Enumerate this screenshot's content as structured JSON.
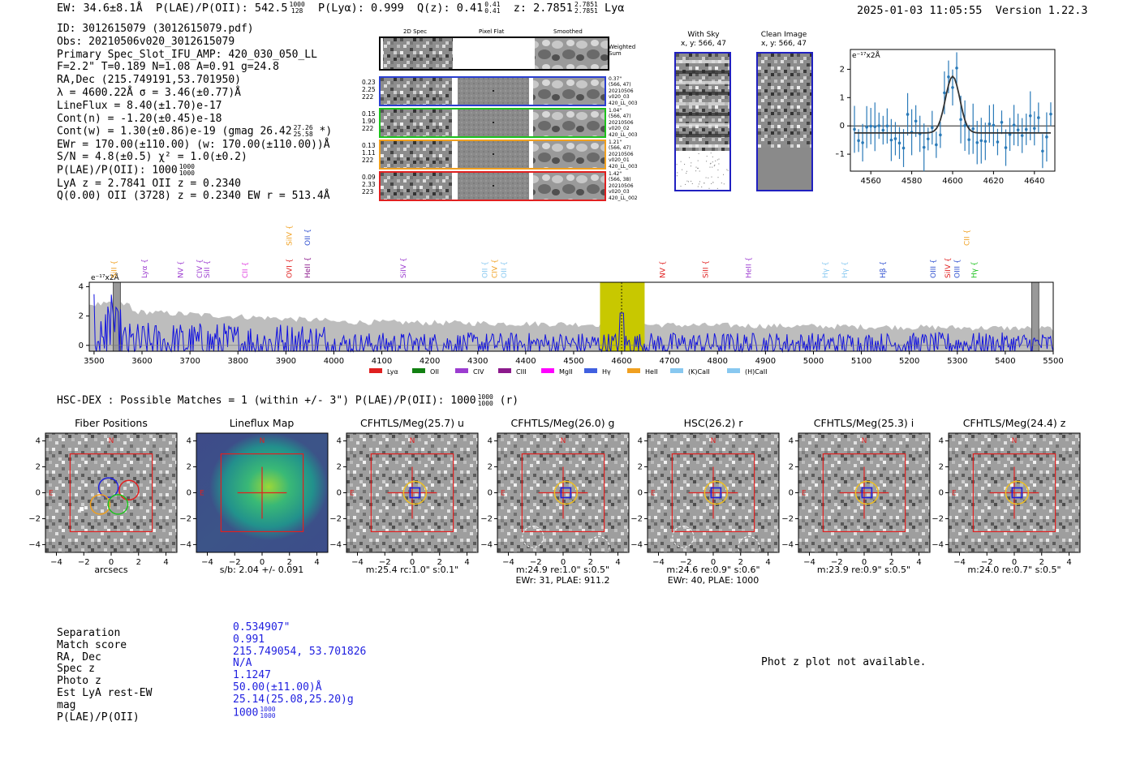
{
  "header": {
    "ew_text": "EW: 34.6±8.1Å",
    "plae_label": "P(LAE)/P(OII): 542.5",
    "plae_hi": "1000",
    "plae_lo": "128",
    "plya_text": "P(Lyα): 0.999",
    "qz_label": "Q(z): 0.41",
    "qz_hi": "0.41",
    "qz_lo": "0.41",
    "z_label": "z: 2.7851",
    "z_hi": "2.7851",
    "z_lo": "2.7851",
    "z_line": "Lyα",
    "datetime": "2025-01-03 11:05:55",
    "version": "Version 1.22.3"
  },
  "info": {
    "id": "ID: 3012615079 (3012615079.pdf)",
    "obs": "Obs: 20210506v020_3012615079",
    "primary": "Primary Spec_Slot_IFU_AMP: 420_030_050_LL",
    "fiber_params": "F=2.2\"  T=0.189  N=1.08  A=0.91  g=24.8",
    "radec": "RA,Dec (215.749191,53.701950)",
    "lambda": "λ = 4600.22Å   σ = 3.46(±0.77)Å",
    "lineflux": "LineFlux = 8.40(±1.70)e-17",
    "contn": "Cont(n) = -1.20(±0.45)e-18",
    "contw_main": "Cont(w) = 1.30(±0.86)e-19 (gmag 26.42",
    "contw_hi": "27.26",
    "contw_lo": "25.58",
    "contw_end": "*)",
    "ewr": "EWr = 170.00(±110.00) (w: 170.00(±110.00))Å",
    "sn": "S/N = 4.8(±0.5)  χ² = 1.0(±0.2)",
    "plae_main": "P(LAE)/P(OII): 1000",
    "plae_hi": "1000",
    "plae_lo": "1000",
    "lya_z": "LyA z = 2.7841  OII z = 0.2340",
    "q_line": "Q(0.00) OII (3728) z = 0.2340  EW r = 513.4Å"
  },
  "cutouts": {
    "col_titles": [
      "2D Spec",
      "Pixel Flat",
      "Smoothed"
    ],
    "weighted_sum": [
      "Weighted",
      "Sum"
    ],
    "rows": [
      {
        "left": [
          "0.23",
          "2.25",
          "222"
        ],
        "right": [
          "0.37\"",
          "(566, 47)",
          "20210506",
          "v020_03",
          "420_LL_003"
        ],
        "color": "#2a3fd1"
      },
      {
        "left": [
          "0.15",
          "1.90",
          "222"
        ],
        "right": [
          "1.04\"",
          "(566, 47)",
          "20210506",
          "v020_02",
          "420_LL_003"
        ],
        "color": "#1cc11c"
      },
      {
        "left": [
          "0.13",
          "1.11",
          "222"
        ],
        "right": [
          "1.21\"",
          "(566, 47)",
          "20210506",
          "v020_01",
          "420_LL_003"
        ],
        "color": "#f0a020"
      },
      {
        "left": [
          "0.09",
          "2.33",
          "223"
        ],
        "right": [
          "1.42\"",
          "(566, 38)",
          "20210506",
          "v020_03",
          "420_LL_002"
        ],
        "color": "#e02020"
      }
    ],
    "with_sky_title": "With Sky",
    "with_sky_coords": "x, y: 566, 47",
    "clean_title": "Clean Image",
    "clean_coords": "x, y: 566, 47"
  },
  "zoom_plot": {
    "unit_label": "e⁻¹⁷x2Å",
    "x_ticks": [
      "4560",
      "4580",
      "4600",
      "4620",
      "4640"
    ],
    "y_ticks": [
      "2",
      "1",
      "0",
      "−1"
    ]
  },
  "spectrum": {
    "unit_label": "e⁻¹⁷x2Å",
    "x_ticks": [
      "3500",
      "3600",
      "3700",
      "3800",
      "3900",
      "4000",
      "4100",
      "4200",
      "4300",
      "4400",
      "4500",
      "4600",
      "4700",
      "4800",
      "4900",
      "5000",
      "5100",
      "5200",
      "5300",
      "5400",
      "5500"
    ],
    "y_ticks": [
      "4",
      "2",
      "0"
    ],
    "lines": [
      {
        "name": "SiII",
        "color": "#f0a020",
        "wave": 3547,
        "row": "low"
      },
      {
        "name": "Lyα",
        "color": "#9c3cd0",
        "wave": 3610,
        "row": "low"
      },
      {
        "name": "NV",
        "color": "#9c3cd0",
        "wave": 3685,
        "row": "low"
      },
      {
        "name": "SiII",
        "color": "#9c3cd0",
        "wave": 3740,
        "row": "low"
      },
      {
        "name": "CIV",
        "color": "#9c3cd0",
        "wave": 3725,
        "row": "low"
      },
      {
        "name": "CII",
        "color": "#e040e0",
        "wave": 3820,
        "row": "low"
      },
      {
        "name": "OVI",
        "color": "#e02020",
        "wave": 3912,
        "row": "low"
      },
      {
        "name": "SiIV",
        "color": "#f0a020",
        "wave": 3912,
        "row": "high"
      },
      {
        "name": "HeII",
        "color": "#8c1a8c",
        "wave": 3950,
        "row": "low"
      },
      {
        "name": "OII",
        "color": "#3050d0",
        "wave": 3950,
        "row": "high"
      },
      {
        "name": "SiIV",
        "color": "#9c3cd0",
        "wave": 4150,
        "row": "low"
      },
      {
        "name": "OII",
        "color": "#88c8f0",
        "wave": 4320,
        "row": "low"
      },
      {
        "name": "CIV",
        "color": "#f0a020",
        "wave": 4340,
        "row": "low"
      },
      {
        "name": "OII",
        "color": "#88c8f0",
        "wave": 4360,
        "row": "low"
      },
      {
        "name": "NV",
        "color": "#e02020",
        "wave": 4690,
        "row": "low"
      },
      {
        "name": "SiII",
        "color": "#e02020",
        "wave": 4780,
        "row": "low"
      },
      {
        "name": "HeII",
        "color": "#9c3cd0",
        "wave": 4870,
        "row": "low"
      },
      {
        "name": "Hγ",
        "color": "#88c8f0",
        "wave": 5030,
        "row": "low"
      },
      {
        "name": "Hγ",
        "color": "#88c8f0",
        "wave": 5070,
        "row": "low"
      },
      {
        "name": "Hβ",
        "color": "#3050d0",
        "wave": 5150,
        "row": "low"
      },
      {
        "name": "OIII",
        "color": "#3050d0",
        "wave": 5255,
        "row": "low"
      },
      {
        "name": "SiIV",
        "color": "#e02020",
        "wave": 5285,
        "row": "low"
      },
      {
        "name": "OIII",
        "color": "#3050d0",
        "wave": 5305,
        "row": "low"
      },
      {
        "name": "Hγ",
        "color": "#1cc11c",
        "wave": 5340,
        "row": "low"
      },
      {
        "name": "CII",
        "color": "#f0a020",
        "wave": 5325,
        "row": "high"
      }
    ],
    "legend": [
      {
        "label": "Lyα",
        "color": "#e02020"
      },
      {
        "label": "OII",
        "color": "#128012"
      },
      {
        "label": "CIV",
        "color": "#9c3cd0"
      },
      {
        "label": "CIII",
        "color": "#8c1a8c"
      },
      {
        "label": "MgII",
        "color": "#ff00ff"
      },
      {
        "label": "Hγ",
        "color": "#4060e0"
      },
      {
        "label": "HeII",
        "color": "#f0a020"
      },
      {
        "label": "(K)CaII",
        "color": "#88c8f0"
      },
      {
        "label": "(H)CaII",
        "color": "#88c8f0"
      }
    ]
  },
  "hsc": {
    "matches_text": "HSC-DEX : Possible Matches = 1 (within +/- 3\")  P(LAE)/P(OII): 1000",
    "matches_hi": "1000",
    "matches_lo": "1000",
    "matches_band": "(r)",
    "axis_ticks": [
      "−4",
      "−2",
      "0",
      "2",
      "4"
    ],
    "y_ticks": [
      "4",
      "2",
      "0",
      "−2",
      "−4"
    ],
    "panels": [
      {
        "title": "Fiber Positions",
        "cap1": "arcsecs",
        "cap2": "",
        "kind": "fiber",
        "n": "N",
        "e": "E"
      },
      {
        "title": "Lineflux Map",
        "cap1": "s/b: 2.04 +/- 0.091",
        "cap2": "",
        "kind": "flux",
        "n": "N",
        "e": "E"
      },
      {
        "title": "CFHTLS/Meg(25.7) u",
        "cap1": "m:25.4 rc:1.0\"  s:0.1\"",
        "cap2": "",
        "kind": "img",
        "n": "N",
        "e": "E"
      },
      {
        "title": "CFHTLS/Meg(26.0) g",
        "cap1": "m:24.9  re:1.0\"  s:0.5\"",
        "cap2": "EWr: 31, PLAE: 911.2",
        "kind": "img",
        "n": "N",
        "e": "E"
      },
      {
        "title": "HSC(26.2) r",
        "cap1": "m:24.6  re:0.9\"  s:0.6\"",
        "cap2": "EWr: 40, PLAE: 1000",
        "kind": "img",
        "n": "N",
        "e": "E"
      },
      {
        "title": "CFHTLS/Meg(25.3) i",
        "cap1": "m:23.9  re:0.9\"  s:0.5\"",
        "cap2": "",
        "kind": "img",
        "n": "N",
        "e": "E"
      },
      {
        "title": "CFHTLS/Meg(24.4) z",
        "cap1": "m:24.0  re:0.7\"  s:0.5\"",
        "cap2": "",
        "kind": "img",
        "n": "N",
        "e": "E"
      }
    ]
  },
  "match_table": {
    "labels": [
      "Separation",
      "Match score",
      "RA, Dec",
      "Spec z",
      "Photo z",
      "Est LyA rest-EW",
      "mag",
      "P(LAE)/P(OII)"
    ],
    "values": [
      "0.534907\"",
      "0.991",
      "215.749054, 53.701826",
      "N/A",
      "1.1247",
      "50.00(±11.00)Å",
      "25.14(25.08,25.20)g",
      "1000"
    ],
    "plae_hi": "1000",
    "plae_lo": "1000"
  },
  "photz_note": "Phot z plot not available.",
  "colors": {
    "spectrum_line": "#1010e0",
    "error_band": "#bdbdbd",
    "highlight": "#c8c800",
    "box_red": "#e02020",
    "zoom_points": "#2a7ab8"
  }
}
